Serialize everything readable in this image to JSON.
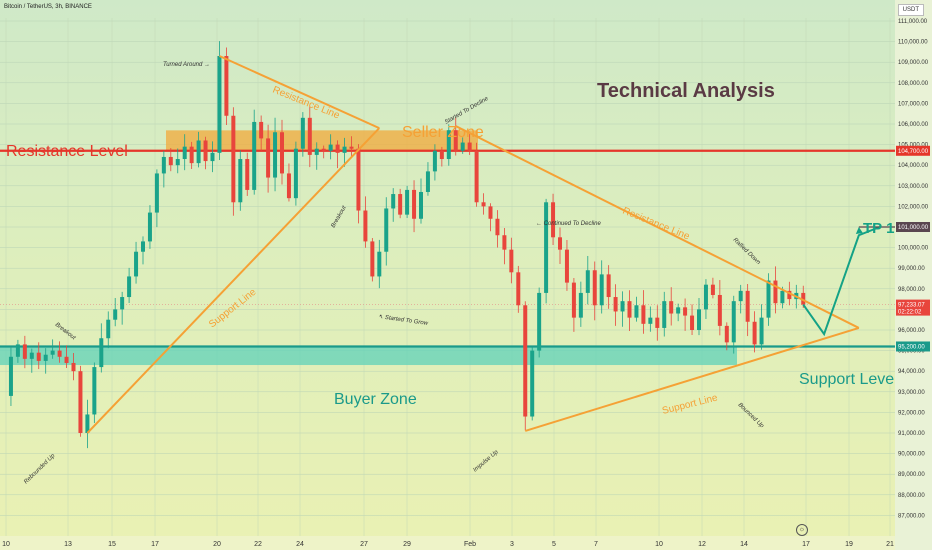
{
  "header": {
    "pair_title": "Bitcoin / TetherUS, 3h, BINANCE",
    "axis_unit": "USDT"
  },
  "colors": {
    "resistance": "#e5362a",
    "support_teal": "#1a9a8a",
    "orange": "#f5a135",
    "candle_up": "#1aa38a",
    "candle_down": "#e8453c",
    "tp_green": "#14a286"
  },
  "annotations": {
    "title": "Technical Analysis",
    "resistance_level": "Resistance Level",
    "seller_zone": "Seller Zone",
    "buyer_zone": "Buyer Zone",
    "support_level": "Support Level",
    "tp1": "TP 1",
    "resistance_line_1": "Resistance Line",
    "resistance_line_2": "Resistance Line",
    "support_line_1": "Support Line",
    "support_line_2": "Support Line",
    "turned_around": "Turned Around",
    "breakout_1": "Breakout",
    "breakout_2": "Breakout",
    "rebounded_up": "Rebounded Up",
    "started_to_grow": "Started To Grow",
    "started_to_decline": "Started To Decline",
    "continued_to_decline": "Continued To Decline",
    "impulse_up": "Impulse Up",
    "bounced_up": "Bounced Up",
    "rallied_down": "Rallied Down"
  },
  "chart_data": {
    "type": "candlestick",
    "title": "Bitcoin / TetherUS, 3h, BINANCE",
    "ylabel": "USDT",
    "ylim": [
      87000,
      111800
    ],
    "x_ticks": [
      "10",
      "13",
      "15",
      "17",
      "20",
      "22",
      "24",
      "27",
      "29",
      "Feb",
      "3",
      "5",
      "7",
      "10",
      "12",
      "14",
      "17",
      "19",
      "21"
    ],
    "y_ticks": [
      87000,
      88000,
      89000,
      90000,
      91000,
      92000,
      93000,
      94000,
      95000,
      96000,
      97000,
      98000,
      99000,
      100000,
      101000,
      102000,
      103000,
      104000,
      105000,
      106000,
      107000,
      108000,
      109000,
      110000,
      111000
    ],
    "y_tick_labels": [
      "87,000.00",
      "88,000.00",
      "89,000.00",
      "90,000.00",
      "91,000.00",
      "92,000.00",
      "93,000.00",
      "94,000.00",
      "95,000.00",
      "96,000.00",
      "97,000.00",
      "98,000.00",
      "99,000.00",
      "100,000.00",
      "101,000.00",
      "102,000.00",
      "103,000.00",
      "104,000.00",
      "105,000.00",
      "106,000.00",
      "107,000.00",
      "108,000.00",
      "109,000.00",
      "110,000.00",
      "111,000.00"
    ],
    "levels": {
      "resistance_level": 104700,
      "support_level": 95200,
      "tp1": 101000,
      "current_price": 97233.07,
      "seller_zone": [
        104700,
        105400
      ],
      "buyer_zone": [
        94300,
        95200
      ]
    },
    "price_tags": [
      {
        "value": 104700,
        "label": "104,700.00",
        "color": "#e5362a"
      },
      {
        "value": 101000,
        "label": "101,000.00",
        "color": "#5a4650"
      },
      {
        "value": 97233.07,
        "label": "97,233.07",
        "sublabel": "02:22:02",
        "color": "#e8453c"
      },
      {
        "value": 95200,
        "label": "95,200.00",
        "color": "#1a9a8a"
      }
    ],
    "price_path": [
      {
        "x": 0,
        "y": 92800
      },
      {
        "x": 1,
        "y": 94700
      },
      {
        "x": 2,
        "y": 95300
      },
      {
        "x": 3,
        "y": 94600
      },
      {
        "x": 4,
        "y": 94900
      },
      {
        "x": 5,
        "y": 94500
      },
      {
        "x": 6,
        "y": 94800
      },
      {
        "x": 7,
        "y": 95000
      },
      {
        "x": 8,
        "y": 94700
      },
      {
        "x": 9,
        "y": 94400
      },
      {
        "x": 10,
        "y": 94000
      },
      {
        "x": 11,
        "y": 91000
      },
      {
        "x": 12,
        "y": 91900
      },
      {
        "x": 13,
        "y": 94200
      },
      {
        "x": 14,
        "y": 95600
      },
      {
        "x": 15,
        "y": 96500
      },
      {
        "x": 16,
        "y": 97000
      },
      {
        "x": 17,
        "y": 97600
      },
      {
        "x": 18,
        "y": 98600
      },
      {
        "x": 19,
        "y": 99800
      },
      {
        "x": 20,
        "y": 100300
      },
      {
        "x": 21,
        "y": 101700
      },
      {
        "x": 22,
        "y": 103600
      },
      {
        "x": 23,
        "y": 104400
      },
      {
        "x": 24,
        "y": 104000
      },
      {
        "x": 25,
        "y": 104300
      },
      {
        "x": 26,
        "y": 104900
      },
      {
        "x": 27,
        "y": 104100
      },
      {
        "x": 28,
        "y": 105200
      },
      {
        "x": 29,
        "y": 104200
      },
      {
        "x": 30,
        "y": 104600
      },
      {
        "x": 31,
        "y": 109300
      },
      {
        "x": 32,
        "y": 106400
      },
      {
        "x": 33,
        "y": 102200
      },
      {
        "x": 34,
        "y": 104300
      },
      {
        "x": 35,
        "y": 102800
      },
      {
        "x": 36,
        "y": 106100
      },
      {
        "x": 37,
        "y": 105300
      },
      {
        "x": 38,
        "y": 103400
      },
      {
        "x": 39,
        "y": 105600
      },
      {
        "x": 40,
        "y": 103600
      },
      {
        "x": 41,
        "y": 102400
      },
      {
        "x": 42,
        "y": 104800
      },
      {
        "x": 43,
        "y": 106300
      },
      {
        "x": 44,
        "y": 104500
      },
      {
        "x": 45,
        "y": 104800
      },
      {
        "x": 46,
        "y": 104700
      },
      {
        "x": 47,
        "y": 105000
      },
      {
        "x": 48,
        "y": 104600
      },
      {
        "x": 49,
        "y": 104900
      },
      {
        "x": 50,
        "y": 104800
      },
      {
        "x": 51,
        "y": 101800
      },
      {
        "x": 52,
        "y": 100300
      },
      {
        "x": 53,
        "y": 98600
      },
      {
        "x": 54,
        "y": 99800
      },
      {
        "x": 55,
        "y": 101900
      },
      {
        "x": 56,
        "y": 102600
      },
      {
        "x": 57,
        "y": 101600
      },
      {
        "x": 58,
        "y": 102800
      },
      {
        "x": 59,
        "y": 101400
      },
      {
        "x": 60,
        "y": 102700
      },
      {
        "x": 61,
        "y": 103700
      },
      {
        "x": 62,
        "y": 104700
      },
      {
        "x": 63,
        "y": 104300
      },
      {
        "x": 64,
        "y": 105700
      },
      {
        "x": 65,
        "y": 104700
      },
      {
        "x": 66,
        "y": 105100
      },
      {
        "x": 67,
        "y": 104700
      },
      {
        "x": 68,
        "y": 102200
      },
      {
        "x": 69,
        "y": 102000
      },
      {
        "x": 70,
        "y": 101400
      },
      {
        "x": 71,
        "y": 100600
      },
      {
        "x": 72,
        "y": 99900
      },
      {
        "x": 73,
        "y": 98800
      },
      {
        "x": 74,
        "y": 97200
      },
      {
        "x": 75,
        "y": 91800
      },
      {
        "x": 76,
        "y": 95000
      },
      {
        "x": 77,
        "y": 97800
      },
      {
        "x": 78,
        "y": 102200
      },
      {
        "x": 79,
        "y": 100500
      },
      {
        "x": 80,
        "y": 99900
      },
      {
        "x": 81,
        "y": 98300
      },
      {
        "x": 82,
        "y": 96600
      },
      {
        "x": 83,
        "y": 97800
      },
      {
        "x": 84,
        "y": 98900
      },
      {
        "x": 85,
        "y": 97200
      },
      {
        "x": 86,
        "y": 98700
      },
      {
        "x": 87,
        "y": 97600
      },
      {
        "x": 88,
        "y": 96900
      },
      {
        "x": 89,
        "y": 97400
      },
      {
        "x": 90,
        "y": 96600
      },
      {
        "x": 91,
        "y": 97200
      },
      {
        "x": 92,
        "y": 96300
      },
      {
        "x": 93,
        "y": 96600
      },
      {
        "x": 94,
        "y": 96100
      },
      {
        "x": 95,
        "y": 97400
      },
      {
        "x": 96,
        "y": 96800
      },
      {
        "x": 97,
        "y": 97100
      },
      {
        "x": 98,
        "y": 96700
      },
      {
        "x": 99,
        "y": 96000
      },
      {
        "x": 100,
        "y": 97000
      },
      {
        "x": 101,
        "y": 98200
      },
      {
        "x": 102,
        "y": 97700
      },
      {
        "x": 103,
        "y": 96200
      },
      {
        "x": 104,
        "y": 95400
      },
      {
        "x": 105,
        "y": 97400
      },
      {
        "x": 106,
        "y": 97900
      },
      {
        "x": 107,
        "y": 96400
      },
      {
        "x": 108,
        "y": 95300
      },
      {
        "x": 109,
        "y": 96600
      },
      {
        "x": 110,
        "y": 98400
      },
      {
        "x": 111,
        "y": 97300
      },
      {
        "x": 112,
        "y": 97900
      },
      {
        "x": 113,
        "y": 97500
      },
      {
        "x": 114,
        "y": 97800
      },
      {
        "x": 115,
        "y": 97233
      }
    ],
    "trendlines": [
      {
        "name": "support-line-1",
        "from": {
          "x": 12,
          "y": 91000
        },
        "to": {
          "x": 54,
          "y": 105800
        }
      },
      {
        "name": "resistance-line-1",
        "from": {
          "x": 31,
          "y": 109300
        },
        "to": {
          "x": 54,
          "y": 105800
        }
      },
      {
        "name": "resistance-line-2",
        "from": {
          "x": 65,
          "y": 105900
        },
        "to": {
          "x": 123,
          "y": 96100
        }
      },
      {
        "name": "support-line-2",
        "from": {
          "x": 75,
          "y": 91100
        },
        "to": {
          "x": 123,
          "y": 96100
        }
      }
    ],
    "projection": [
      {
        "x": 115,
        "y": 97233
      },
      {
        "x": 118,
        "y": 95800
      },
      {
        "x": 123,
        "y": 100600
      },
      {
        "x": 126,
        "y": 101000
      }
    ]
  }
}
